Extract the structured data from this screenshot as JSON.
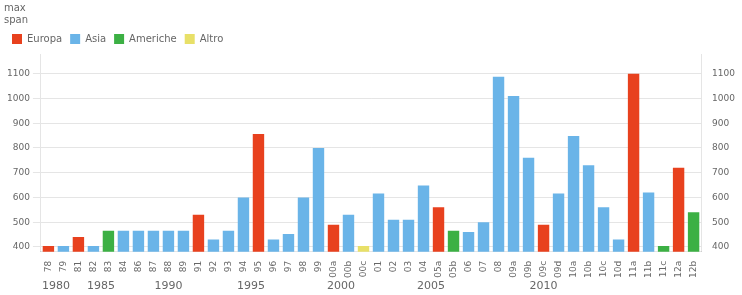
{
  "chart_data": {
    "type": "bar",
    "ylabel": "max\nspan",
    "categories": [
      "78",
      "79",
      "81",
      "82",
      "83",
      "84",
      "86",
      "87",
      "88",
      "89",
      "91",
      "92",
      "93",
      "94",
      "95",
      "96",
      "97",
      "98",
      "99",
      "00a",
      "00b",
      "00c",
      "01",
      "02",
      "03",
      "04",
      "05a",
      "05b",
      "06",
      "07",
      "08",
      "09a",
      "09b",
      "09c",
      "09d",
      "10a",
      "10b",
      "10c",
      "10d",
      "11a",
      "11b",
      "11c",
      "12a",
      "12b"
    ],
    "series": [
      {
        "name": "Europa",
        "color": "#e8411e",
        "values": [
          404,
          null,
          440,
          null,
          null,
          null,
          null,
          null,
          null,
          null,
          530,
          null,
          null,
          null,
          856,
          null,
          null,
          null,
          null,
          490,
          null,
          null,
          null,
          null,
          null,
          null,
          560,
          null,
          null,
          null,
          null,
          null,
          null,
          490,
          null,
          null,
          null,
          null,
          null,
          1100,
          null,
          null,
          720,
          null
        ]
      },
      {
        "name": "Asia",
        "color": "#6ab4e8",
        "values": [
          null,
          404,
          null,
          404,
          null,
          465,
          465,
          465,
          465,
          465,
          null,
          430,
          465,
          600,
          null,
          430,
          452,
          600,
          800,
          null,
          530,
          null,
          616,
          510,
          510,
          648,
          null,
          null,
          460,
          500,
          1088,
          1010,
          760,
          null,
          616,
          848,
          730,
          560,
          430,
          null,
          620,
          null,
          null,
          null
        ]
      },
      {
        "name": "Americhe",
        "color": "#3cb044",
        "values": [
          null,
          null,
          null,
          null,
          465,
          null,
          null,
          null,
          null,
          null,
          null,
          null,
          null,
          null,
          null,
          null,
          null,
          null,
          null,
          null,
          null,
          null,
          null,
          null,
          null,
          null,
          null,
          465,
          null,
          null,
          null,
          null,
          null,
          null,
          null,
          null,
          null,
          null,
          null,
          null,
          null,
          404,
          null,
          540
        ]
      },
      {
        "name": "Altro",
        "color": "#e8e068",
        "values": [
          null,
          null,
          null,
          null,
          null,
          null,
          null,
          null,
          null,
          null,
          null,
          null,
          null,
          null,
          null,
          null,
          null,
          null,
          null,
          null,
          null,
          404,
          null,
          null,
          null,
          null,
          null,
          null,
          null,
          null,
          null,
          null,
          null,
          null,
          null,
          null,
          null,
          null,
          null,
          null,
          null,
          null,
          null,
          null
        ]
      }
    ],
    "ylim": [
      380,
      1180
    ],
    "yticks": [
      400,
      500,
      600,
      700,
      800,
      900,
      1000,
      1100
    ],
    "y2lim": [
      380,
      1180
    ],
    "y2ticks": [
      400,
      500,
      600,
      700,
      800,
      900,
      1000,
      1100
    ],
    "grid": true,
    "legend": "upper left",
    "annotations": [
      {
        "text": "1980",
        "x": 0.5
      },
      {
        "text": "1985",
        "x": 3.5
      },
      {
        "text": "1990",
        "x": 8.0
      },
      {
        "text": "1995",
        "x": 13.5
      },
      {
        "text": "2000",
        "x": 19.5
      },
      {
        "text": "2005",
        "x": 25.5
      },
      {
        "text": "2010",
        "x": 33.0
      }
    ]
  }
}
